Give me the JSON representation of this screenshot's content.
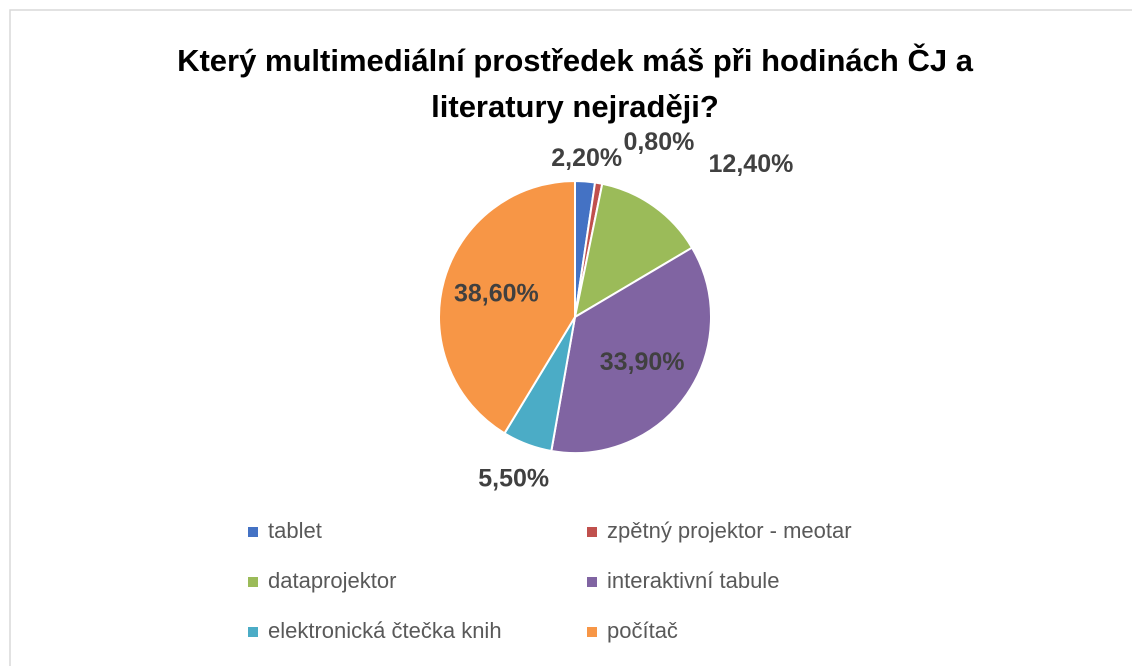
{
  "chart_data": {
    "type": "pie",
    "title": "Který multimediální prostředek máš při hodinách ČJ a literatury nejraději?",
    "categories": [
      "tablet",
      "zpětný projektor - meotar",
      "dataprojektor",
      "interaktivní tabule",
      "elektronická čtečka knih",
      "počítač"
    ],
    "values": [
      2.2,
      0.8,
      12.4,
      33.9,
      5.5,
      38.6
    ],
    "value_labels": [
      "2,20%",
      "0,80%",
      "12,40%",
      "33,90%",
      "5,50%",
      "38,60%"
    ],
    "colors": [
      "#4472c4",
      "#c0504d",
      "#9bbb59",
      "#8064a2",
      "#4bacc6",
      "#f79646"
    ],
    "legend": "bottom"
  }
}
